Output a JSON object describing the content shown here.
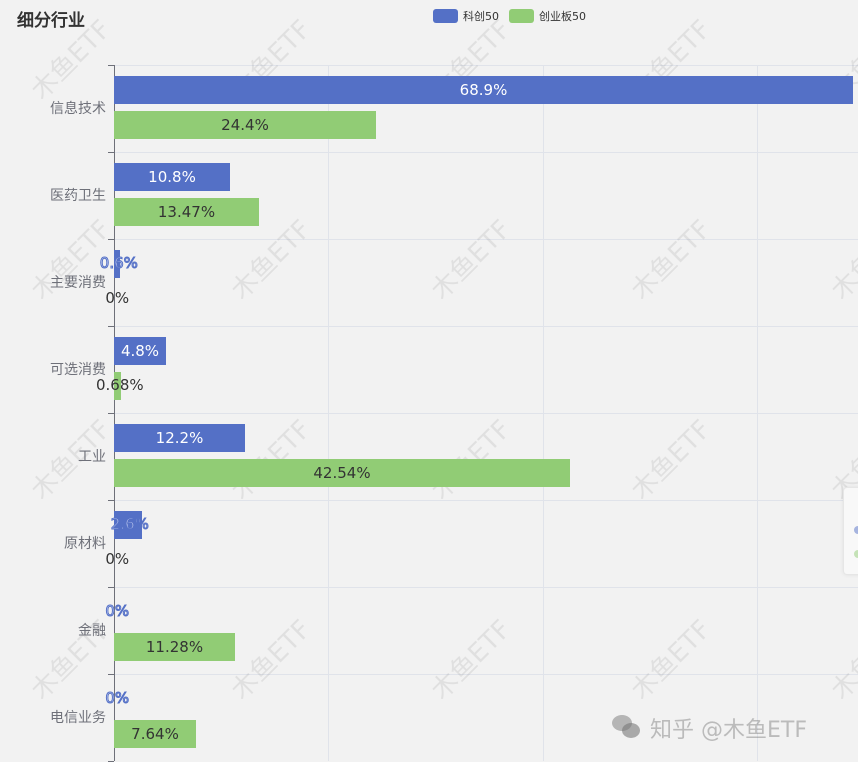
{
  "title": "细分行业",
  "legend": [
    {
      "name": "科创50",
      "color": "#5470c6"
    },
    {
      "name": "创业板50",
      "color": "#91cc75"
    }
  ],
  "watermark": "木鱼ETF",
  "footer_watermark": "知乎 @木鱼ETF",
  "chart_data": {
    "type": "bar",
    "orientation": "horizontal",
    "title": "细分行业",
    "categories": [
      "信息技术",
      "医药卫生",
      "主要消费",
      "可选消费",
      "工业",
      "原材料",
      "金融",
      "电信业务"
    ],
    "series": [
      {
        "name": "科创50",
        "color": "#5470c6",
        "values": [
          68.9,
          10.8,
          0.6,
          4.8,
          12.2,
          2.6,
          0,
          0
        ],
        "labels": [
          "68.9%",
          "10.8%",
          "0.6%",
          "4.8%",
          "12.2%",
          "2.6%",
          "0%",
          "0%"
        ]
      },
      {
        "name": "创业板50",
        "color": "#91cc75",
        "values": [
          24.4,
          13.47,
          0,
          0.68,
          42.54,
          0,
          11.28,
          7.64
        ],
        "labels": [
          "24.4%",
          "13.47%",
          "0%",
          "0.68%",
          "42.54%",
          "0%",
          "11.28%",
          "7.64%"
        ]
      }
    ],
    "xlabel": "",
    "ylabel": "",
    "xlim": [
      0,
      70
    ],
    "grid": true,
    "legend_position": "top-center",
    "value_axis_labels_visible": false
  }
}
